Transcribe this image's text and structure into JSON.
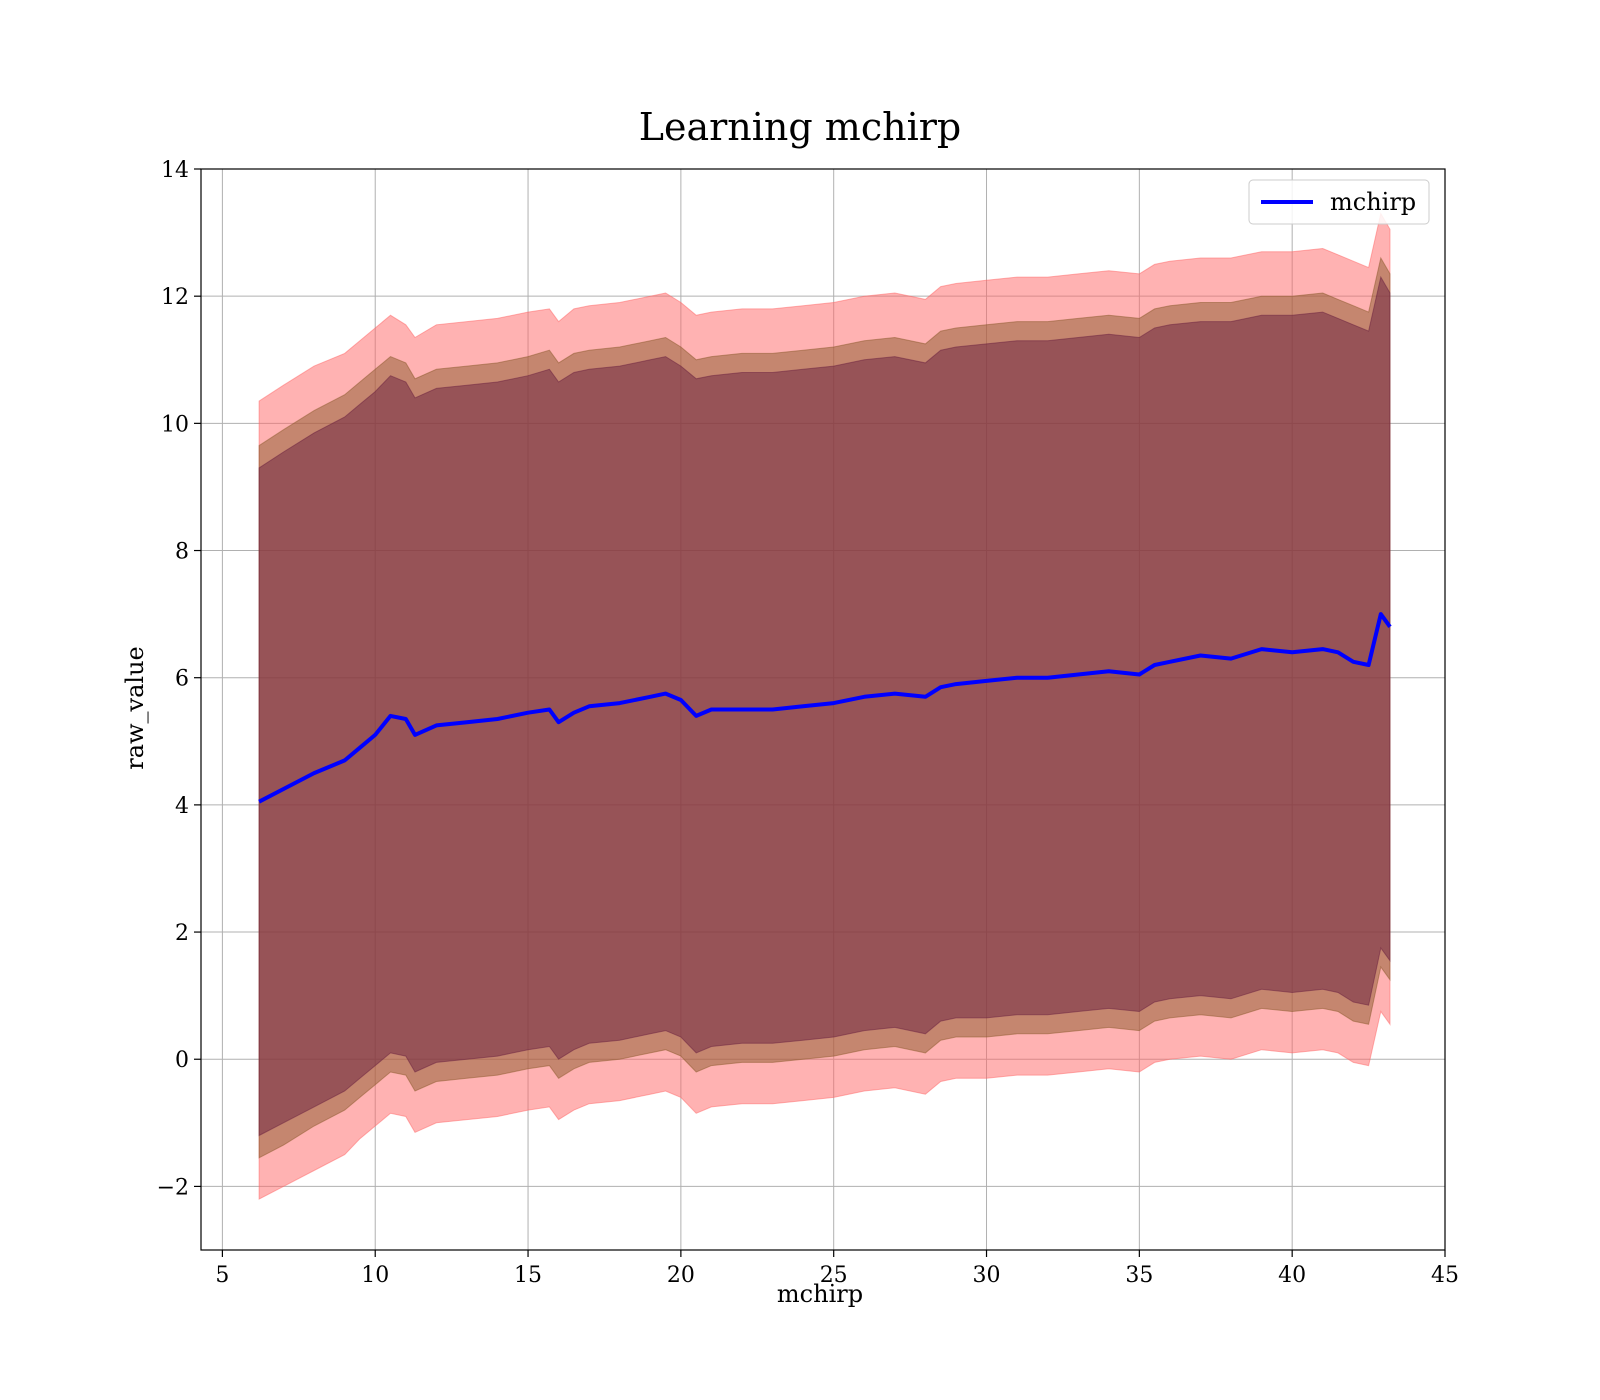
{
  "chart_data": {
    "type": "area",
    "title": "Learning mchirp",
    "xlabel": "mchirp",
    "ylabel": "raw_value",
    "xlim": [
      4.3,
      45
    ],
    "ylim": [
      -3,
      14
    ],
    "x_ticks": [
      5,
      10,
      15,
      20,
      25,
      30,
      35,
      40,
      45
    ],
    "x_tick_labels": [
      "5",
      "10",
      "15",
      "20",
      "25",
      "30",
      "35",
      "40",
      "45"
    ],
    "y_ticks": [
      -2,
      0,
      2,
      4,
      6,
      8,
      10,
      12,
      14
    ],
    "y_tick_labels": [
      "−2",
      "0",
      "2",
      "4",
      "6",
      "8",
      "10",
      "12",
      "14"
    ],
    "grid": true,
    "legend_position": "top-right",
    "series": [
      {
        "name": "mchirp",
        "color": "#0000ff",
        "x": [
          6.2,
          7.0,
          8.0,
          9.0,
          9.5,
          10.0,
          10.5,
          11.0,
          11.3,
          12.0,
          13.0,
          14.0,
          15.0,
          15.7,
          16.0,
          16.5,
          17.0,
          18.0,
          19.0,
          19.5,
          20.0,
          20.5,
          21.0,
          22.0,
          23.0,
          24.0,
          25.0,
          26.0,
          27.0,
          28.0,
          28.5,
          29.0,
          30.0,
          31.0,
          32.0,
          33.0,
          34.0,
          35.0,
          35.5,
          36.0,
          37.0,
          38.0,
          39.0,
          40.0,
          41.0,
          41.5,
          42.0,
          42.5,
          42.9,
          43.2
        ],
        "values": [
          4.05,
          4.25,
          4.5,
          4.7,
          4.9,
          5.1,
          5.4,
          5.35,
          5.1,
          5.25,
          5.3,
          5.35,
          5.45,
          5.5,
          5.3,
          5.45,
          5.55,
          5.6,
          5.7,
          5.75,
          5.65,
          5.4,
          5.5,
          5.5,
          5.5,
          5.55,
          5.6,
          5.7,
          5.75,
          5.7,
          5.85,
          5.9,
          5.95,
          6.0,
          6.0,
          6.05,
          6.1,
          6.05,
          6.2,
          6.25,
          6.35,
          6.3,
          6.45,
          6.4,
          6.45,
          6.4,
          6.25,
          6.2,
          7.0,
          6.8
        ]
      }
    ],
    "bands": [
      {
        "color": "#ff6666",
        "x": [
          6.2,
          7.0,
          8.0,
          9.0,
          9.5,
          10.0,
          10.5,
          11.0,
          11.3,
          12.0,
          13.0,
          14.0,
          15.0,
          15.7,
          16.0,
          16.5,
          17.0,
          18.0,
          19.0,
          19.5,
          20.0,
          20.5,
          21.0,
          22.0,
          23.0,
          24.0,
          25.0,
          26.0,
          27.0,
          28.0,
          28.5,
          29.0,
          30.0,
          31.0,
          32.0,
          33.0,
          34.0,
          35.0,
          35.5,
          36.0,
          37.0,
          38.0,
          39.0,
          40.0,
          41.0,
          41.5,
          42.0,
          42.5,
          42.9,
          43.2
        ],
        "upper": [
          10.35,
          10.6,
          10.9,
          11.1,
          11.3,
          11.5,
          11.7,
          11.55,
          11.35,
          11.55,
          11.6,
          11.65,
          11.75,
          11.8,
          11.6,
          11.8,
          11.85,
          11.9,
          12.0,
          12.05,
          11.9,
          11.7,
          11.75,
          11.8,
          11.8,
          11.85,
          11.9,
          12.0,
          12.05,
          11.95,
          12.15,
          12.2,
          12.25,
          12.3,
          12.3,
          12.35,
          12.4,
          12.35,
          12.5,
          12.55,
          12.6,
          12.6,
          12.7,
          12.7,
          12.75,
          12.65,
          12.55,
          12.45,
          13.3,
          13.05
        ],
        "lower": [
          -2.2,
          -2.0,
          -1.75,
          -1.5,
          -1.25,
          -1.05,
          -0.85,
          -0.9,
          -1.15,
          -1.0,
          -0.95,
          -0.9,
          -0.8,
          -0.75,
          -0.95,
          -0.8,
          -0.7,
          -0.65,
          -0.55,
          -0.5,
          -0.6,
          -0.85,
          -0.75,
          -0.7,
          -0.7,
          -0.65,
          -0.6,
          -0.5,
          -0.45,
          -0.55,
          -0.35,
          -0.3,
          -0.3,
          -0.25,
          -0.25,
          -0.2,
          -0.15,
          -0.2,
          -0.05,
          0.0,
          0.05,
          0.0,
          0.15,
          0.1,
          0.15,
          0.1,
          -0.05,
          -0.1,
          0.75,
          0.55
        ]
      },
      {
        "color": "#8b5a2b",
        "x": [
          6.2,
          7.0,
          8.0,
          9.0,
          9.5,
          10.0,
          10.5,
          11.0,
          11.3,
          12.0,
          13.0,
          14.0,
          15.0,
          15.7,
          16.0,
          16.5,
          17.0,
          18.0,
          19.0,
          19.5,
          20.0,
          20.5,
          21.0,
          22.0,
          23.0,
          24.0,
          25.0,
          26.0,
          27.0,
          28.0,
          28.5,
          29.0,
          30.0,
          31.0,
          32.0,
          33.0,
          34.0,
          35.0,
          35.5,
          36.0,
          37.0,
          38.0,
          39.0,
          40.0,
          41.0,
          41.5,
          42.0,
          42.5,
          42.9,
          43.2
        ],
        "upper": [
          9.65,
          9.9,
          10.2,
          10.45,
          10.65,
          10.85,
          11.05,
          10.95,
          10.7,
          10.85,
          10.9,
          10.95,
          11.05,
          11.15,
          10.95,
          11.1,
          11.15,
          11.2,
          11.3,
          11.35,
          11.2,
          11.0,
          11.05,
          11.1,
          11.1,
          11.15,
          11.2,
          11.3,
          11.35,
          11.25,
          11.45,
          11.5,
          11.55,
          11.6,
          11.6,
          11.65,
          11.7,
          11.65,
          11.8,
          11.85,
          11.9,
          11.9,
          12.0,
          12.0,
          12.05,
          11.95,
          11.85,
          11.75,
          12.6,
          12.35
        ],
        "lower": [
          -1.55,
          -1.35,
          -1.05,
          -0.8,
          -0.6,
          -0.4,
          -0.2,
          -0.25,
          -0.5,
          -0.35,
          -0.3,
          -0.25,
          -0.15,
          -0.1,
          -0.3,
          -0.15,
          -0.05,
          0.0,
          0.1,
          0.15,
          0.05,
          -0.2,
          -0.1,
          -0.05,
          -0.05,
          0.0,
          0.05,
          0.15,
          0.2,
          0.1,
          0.3,
          0.35,
          0.35,
          0.4,
          0.4,
          0.45,
          0.5,
          0.45,
          0.6,
          0.65,
          0.7,
          0.65,
          0.8,
          0.75,
          0.8,
          0.75,
          0.6,
          0.55,
          1.45,
          1.25
        ]
      },
      {
        "color": "#6a1f40",
        "x": [
          6.2,
          7.0,
          8.0,
          9.0,
          9.5,
          10.0,
          10.5,
          11.0,
          11.3,
          12.0,
          13.0,
          14.0,
          15.0,
          15.7,
          16.0,
          16.5,
          17.0,
          18.0,
          19.0,
          19.5,
          20.0,
          20.5,
          21.0,
          22.0,
          23.0,
          24.0,
          25.0,
          26.0,
          27.0,
          28.0,
          28.5,
          29.0,
          30.0,
          31.0,
          32.0,
          33.0,
          34.0,
          35.0,
          35.5,
          36.0,
          37.0,
          38.0,
          39.0,
          40.0,
          41.0,
          41.5,
          42.0,
          42.5,
          42.9,
          43.2
        ],
        "upper": [
          9.3,
          9.55,
          9.85,
          10.1,
          10.3,
          10.5,
          10.75,
          10.65,
          10.4,
          10.55,
          10.6,
          10.65,
          10.75,
          10.85,
          10.65,
          10.8,
          10.85,
          10.9,
          11.0,
          11.05,
          10.9,
          10.7,
          10.75,
          10.8,
          10.8,
          10.85,
          10.9,
          11.0,
          11.05,
          10.95,
          11.15,
          11.2,
          11.25,
          11.3,
          11.3,
          11.35,
          11.4,
          11.35,
          11.5,
          11.55,
          11.6,
          11.6,
          11.7,
          11.7,
          11.75,
          11.65,
          11.55,
          11.45,
          12.3,
          12.05
        ],
        "lower": [
          -1.2,
          -1.0,
          -0.75,
          -0.5,
          -0.3,
          -0.1,
          0.1,
          0.05,
          -0.2,
          -0.05,
          0.0,
          0.05,
          0.15,
          0.2,
          0.0,
          0.15,
          0.25,
          0.3,
          0.4,
          0.45,
          0.35,
          0.1,
          0.2,
          0.25,
          0.25,
          0.3,
          0.35,
          0.45,
          0.5,
          0.4,
          0.6,
          0.65,
          0.65,
          0.7,
          0.7,
          0.75,
          0.8,
          0.75,
          0.9,
          0.95,
          1.0,
          0.95,
          1.1,
          1.05,
          1.1,
          1.05,
          0.9,
          0.85,
          1.75,
          1.55
        ]
      }
    ]
  }
}
